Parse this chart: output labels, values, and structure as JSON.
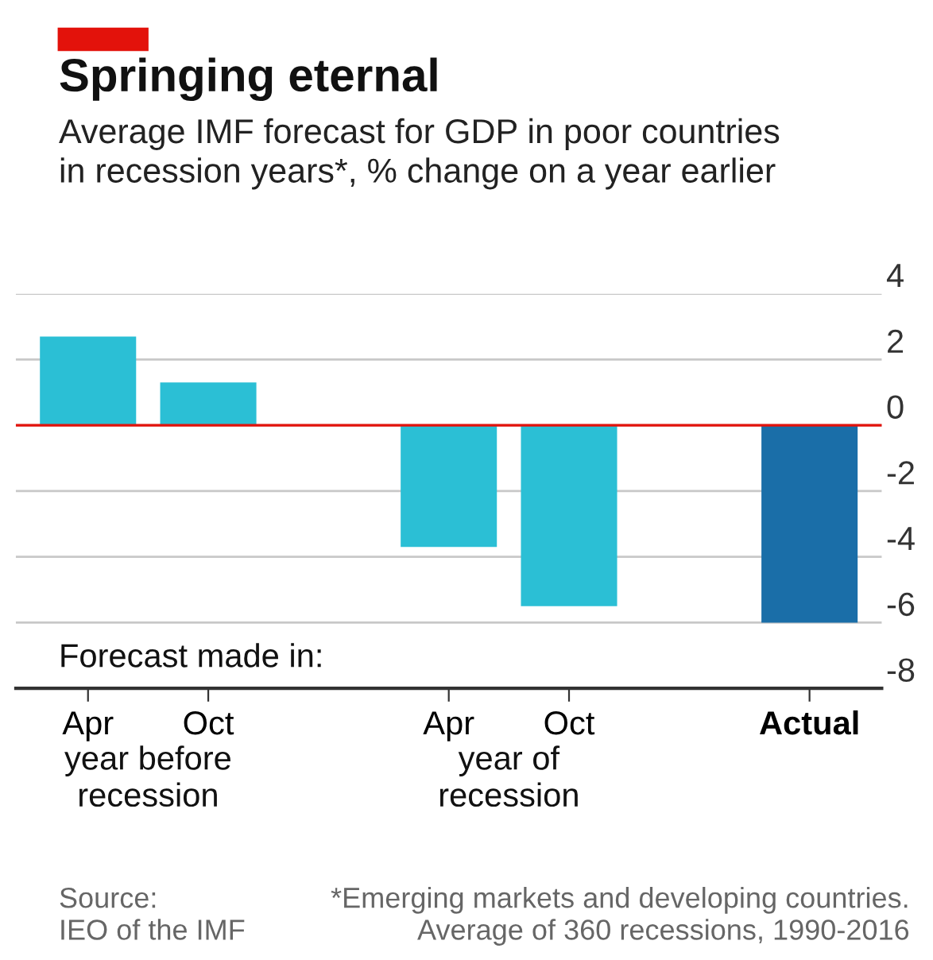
{
  "chart_data": {
    "type": "bar",
    "title": "Springing eternal",
    "subtitle": "Average IMF forecast for GDP in poor countries\nin recession years*, % change on a year earlier",
    "categories": [
      "Apr",
      "Oct",
      null,
      "Apr",
      "Oct",
      null,
      "Actual"
    ],
    "values": [
      2.7,
      1.3,
      null,
      -3.7,
      -5.5,
      null,
      -6.0
    ],
    "colors": [
      "#2bbfd5",
      "#2bbfd5",
      null,
      "#2bbfd5",
      "#2bbfd5",
      null,
      "#1a6ea8"
    ],
    "ylim": [
      -8,
      4
    ],
    "yticks": [
      -8,
      -6,
      -4,
      -2,
      0,
      2,
      4
    ],
    "grid": "y",
    "ref_lines": [
      {
        "axis": "y",
        "value": 0,
        "color": "#e3120b"
      }
    ],
    "annotations": [
      "Forecast made in:",
      "year before\nrecession",
      "year of\nrecession",
      "Source:\nIEO of the IMF",
      "*Emerging markets and developing countries.\nAverage of 360 recessions, 1990-2016"
    ]
  }
}
